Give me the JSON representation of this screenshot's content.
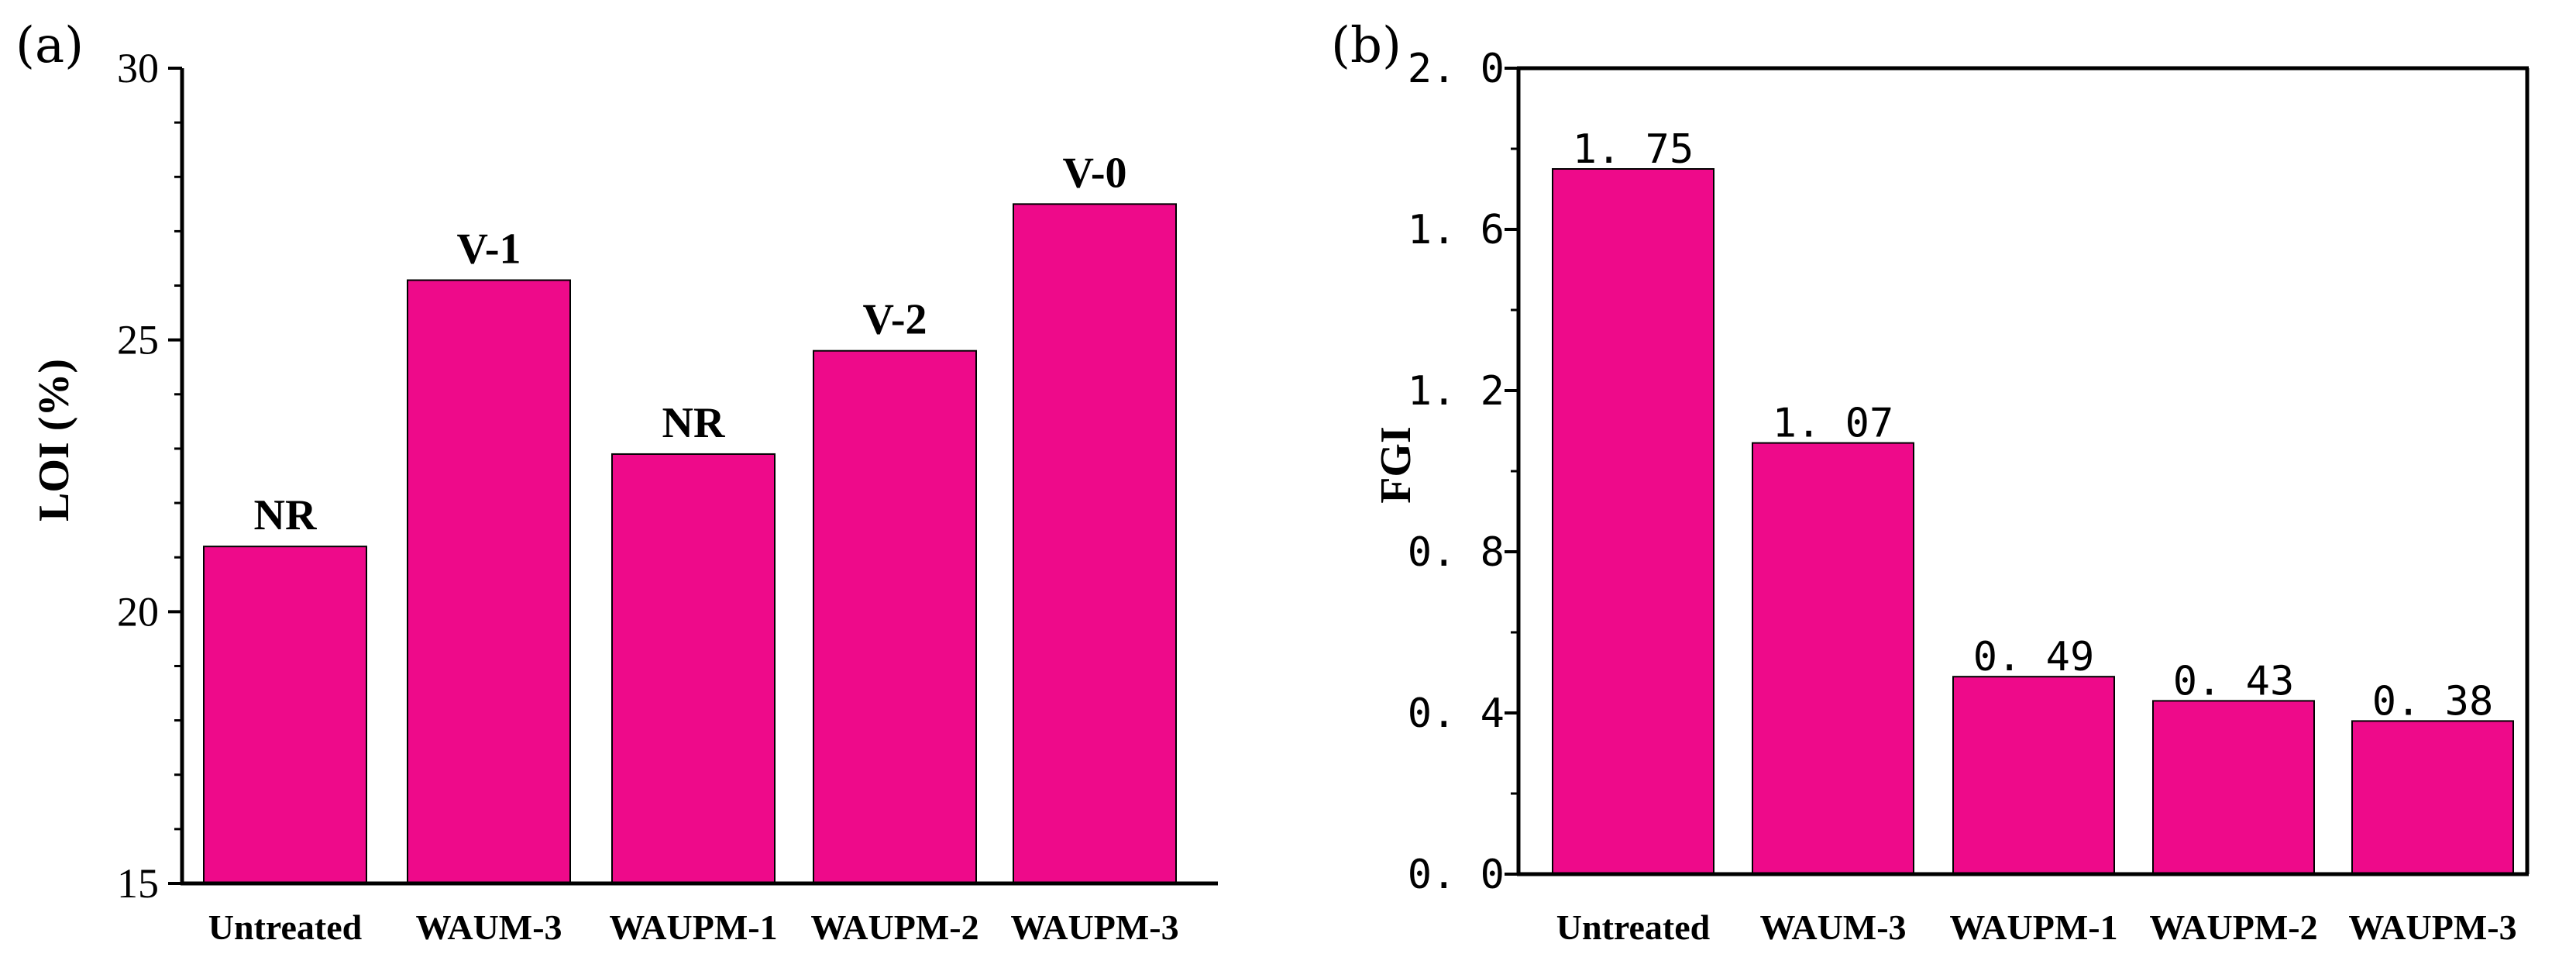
{
  "colors": {
    "bar": "#ee0a8a",
    "axis": "#000000"
  },
  "chart_data": [
    {
      "type": "bar",
      "panel_label": "(a)",
      "title": "",
      "xlabel": "",
      "ylabel": "LOI (%)",
      "ylim": [
        15,
        30
      ],
      "yticks": [
        15,
        20,
        25,
        30
      ],
      "ytick_labels": [
        "15",
        "20",
        "25",
        "30"
      ],
      "categories": [
        "Untreated",
        "WAUM-3",
        "WAUPM-1",
        "WAUPM-2",
        "WAUPM-3"
      ],
      "values": [
        21.2,
        26.1,
        22.9,
        24.8,
        27.5
      ],
      "bar_labels": [
        "NR",
        "V-1",
        "NR",
        "V-2",
        "V-0"
      ]
    },
    {
      "type": "bar",
      "panel_label": "(b)",
      "title": "",
      "xlabel": "",
      "ylabel": "FGI",
      "ylim": [
        0,
        2.0
      ],
      "yticks": [
        0,
        0.4,
        0.8,
        1.2,
        1.6,
        2.0
      ],
      "ytick_labels": [
        "0. 0",
        "0. 4",
        "0. 8",
        "1. 2",
        "1. 6",
        "2. 0"
      ],
      "categories": [
        "Untreated",
        "WAUM-3",
        "WAUPM-1",
        "WAUPM-2",
        "WAUPM-3"
      ],
      "values": [
        1.75,
        1.07,
        0.49,
        0.43,
        0.38
      ],
      "bar_labels": [
        "1. 75",
        "1. 07",
        "0. 49",
        "0. 43",
        "0. 38"
      ]
    }
  ]
}
